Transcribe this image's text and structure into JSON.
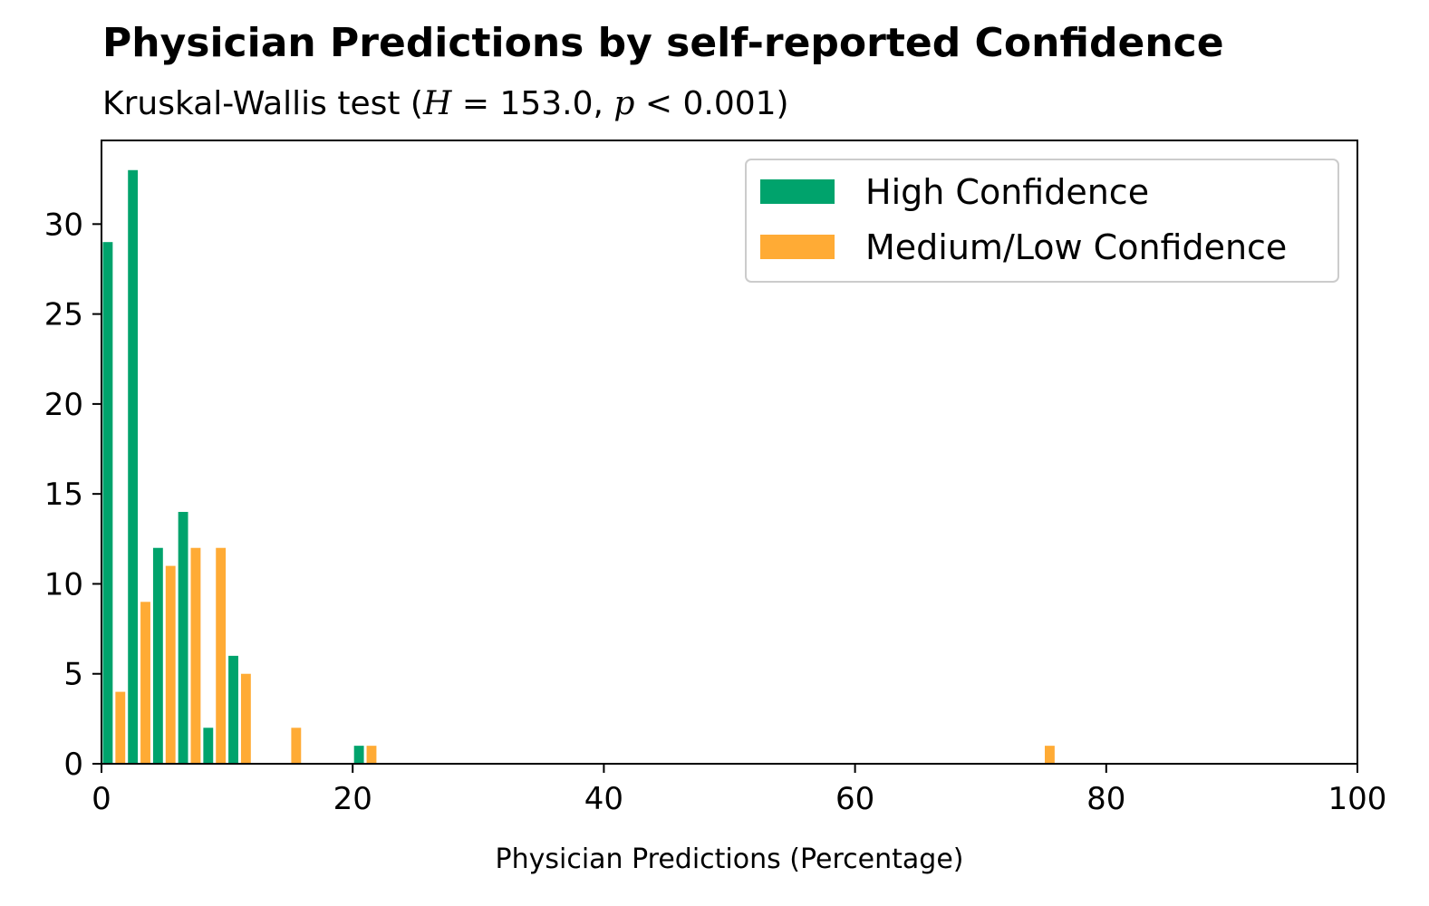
{
  "chart_data": {
    "type": "bar",
    "title": "Physician Predictions by self-reported Confidence",
    "subtitle_prefix": "Kruskal-Wallis test (",
    "subtitle_h_symbol": "H",
    "subtitle_h_text": " = 153.0, ",
    "subtitle_p_symbol": "p",
    "subtitle_p_text": " < 0.001)",
    "xlabel": "Physician Predictions (Percentage)",
    "ylabel": "",
    "xlim": [
      0,
      100
    ],
    "ylim": [
      0,
      34.65
    ],
    "x_ticks": [
      "0",
      "20",
      "40",
      "60",
      "80",
      "100"
    ],
    "y_ticks": [
      "0",
      "5",
      "10",
      "15",
      "20",
      "25",
      "30"
    ],
    "grid": false,
    "legend_position": "top-right",
    "bin_width": 2,
    "bin_starts": [
      0,
      2,
      4,
      6,
      8,
      10,
      14,
      20,
      74
    ],
    "series": [
      {
        "name": "High Confidence",
        "color": "#00a36c",
        "values": [
          29,
          33,
          12,
          14,
          2,
          6,
          0,
          1,
          0
        ]
      },
      {
        "name": "Medium/Low Confidence",
        "color": "#ffab35",
        "values": [
          4,
          9,
          11,
          12,
          12,
          5,
          2,
          1,
          1
        ]
      }
    ]
  }
}
